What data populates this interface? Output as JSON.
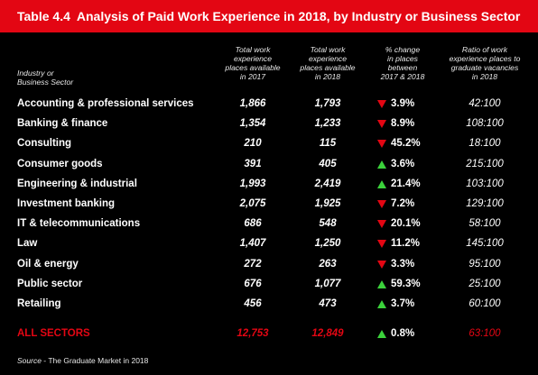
{
  "title": {
    "number": "Table 4.4",
    "text": "Analysis of Paid Work Experience in 2018, by Industry or Business Sector"
  },
  "headers": {
    "sector": [
      "Industry or",
      "Business Sector"
    ],
    "total_2017": [
      "Total work",
      "experience",
      "places available",
      "in 2017"
    ],
    "total_2018": [
      "Total work",
      "experience",
      "places available",
      "in 2018"
    ],
    "change": [
      "% change",
      "in places",
      "between",
      "2017 & 2018"
    ],
    "ratio": [
      "Ratio of work",
      "experience places to",
      "graduate vacancies",
      "in 2018"
    ]
  },
  "rows": [
    {
      "sector": "Accounting & professional services",
      "y2017": "1,866",
      "y2018": "1,793",
      "direction": "down",
      "change": "3.9%",
      "ratio": "42:100"
    },
    {
      "sector": "Banking & finance",
      "y2017": "1,354",
      "y2018": "1,233",
      "direction": "down",
      "change": "8.9%",
      "ratio": "108:100"
    },
    {
      "sector": "Consulting",
      "y2017": "210",
      "y2018": "115",
      "direction": "down",
      "change": "45.2%",
      "ratio": "18:100"
    },
    {
      "sector": "Consumer goods",
      "y2017": "391",
      "y2018": "405",
      "direction": "up",
      "change": "3.6%",
      "ratio": "215:100"
    },
    {
      "sector": "Engineering & industrial",
      "y2017": "1,993",
      "y2018": "2,419",
      "direction": "up",
      "change": "21.4%",
      "ratio": "103:100"
    },
    {
      "sector": "Investment banking",
      "y2017": "2,075",
      "y2018": "1,925",
      "direction": "down",
      "change": "7.2%",
      "ratio": "129:100"
    },
    {
      "sector": "IT & telecommunications",
      "y2017": "686",
      "y2018": "548",
      "direction": "down",
      "change": "20.1%",
      "ratio": "58:100"
    },
    {
      "sector": "Law",
      "y2017": "1,407",
      "y2018": "1,250",
      "direction": "down",
      "change": "11.2%",
      "ratio": "145:100"
    },
    {
      "sector": "Oil & energy",
      "y2017": "272",
      "y2018": "263",
      "direction": "down",
      "change": "3.3%",
      "ratio": "95:100"
    },
    {
      "sector": "Public sector",
      "y2017": "676",
      "y2018": "1,077",
      "direction": "up",
      "change": "59.3%",
      "ratio": "25:100"
    },
    {
      "sector": "Retailing",
      "y2017": "456",
      "y2018": "473",
      "direction": "up",
      "change": "3.7%",
      "ratio": "60:100"
    }
  ],
  "total": {
    "sector": "ALL SECTORS",
    "y2017": "12,753",
    "y2018": "12,849",
    "direction": "up",
    "change": "0.8%",
    "ratio": "63:100"
  },
  "source": {
    "label": "Source",
    "text": " - The Graduate Market in 2018"
  },
  "colors": {
    "accent": "#e30613",
    "up": "#3bd23b",
    "down": "#e30613"
  }
}
